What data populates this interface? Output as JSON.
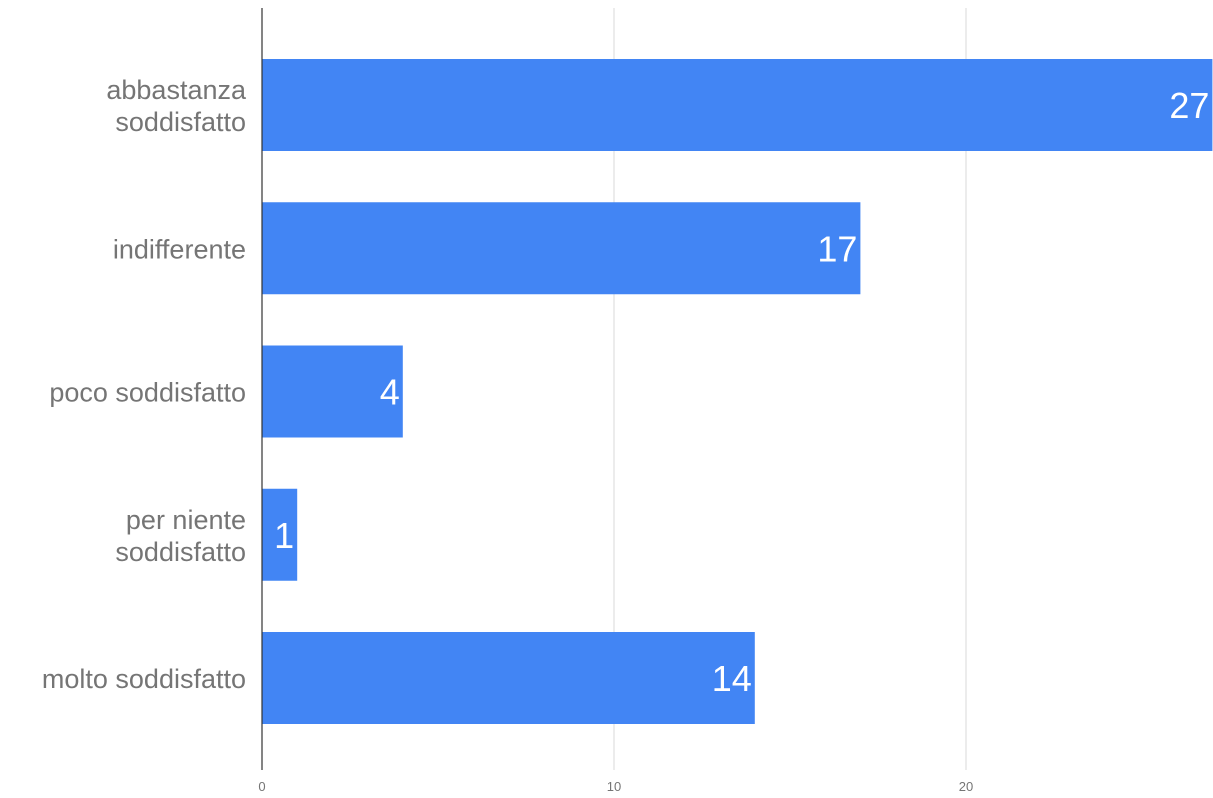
{
  "chart_data": {
    "type": "bar",
    "orientation": "horizontal",
    "categories": [
      [
        "abbastanza",
        "soddisfatto"
      ],
      [
        "indifferente"
      ],
      [
        "poco soddisfatto"
      ],
      [
        "per niente",
        "soddisfatto"
      ],
      [
        "molto soddisfatto"
      ]
    ],
    "values": [
      27,
      17,
      4,
      1,
      14
    ],
    "xlim": [
      0,
      27
    ],
    "xticks": [
      "0",
      "10",
      "20"
    ],
    "tick_values": [
      0,
      10,
      20
    ],
    "grid": true,
    "legend": "none",
    "bar_color": "#4285f4",
    "grid_color": "#d9d9d9",
    "axis_color": "#333333"
  }
}
